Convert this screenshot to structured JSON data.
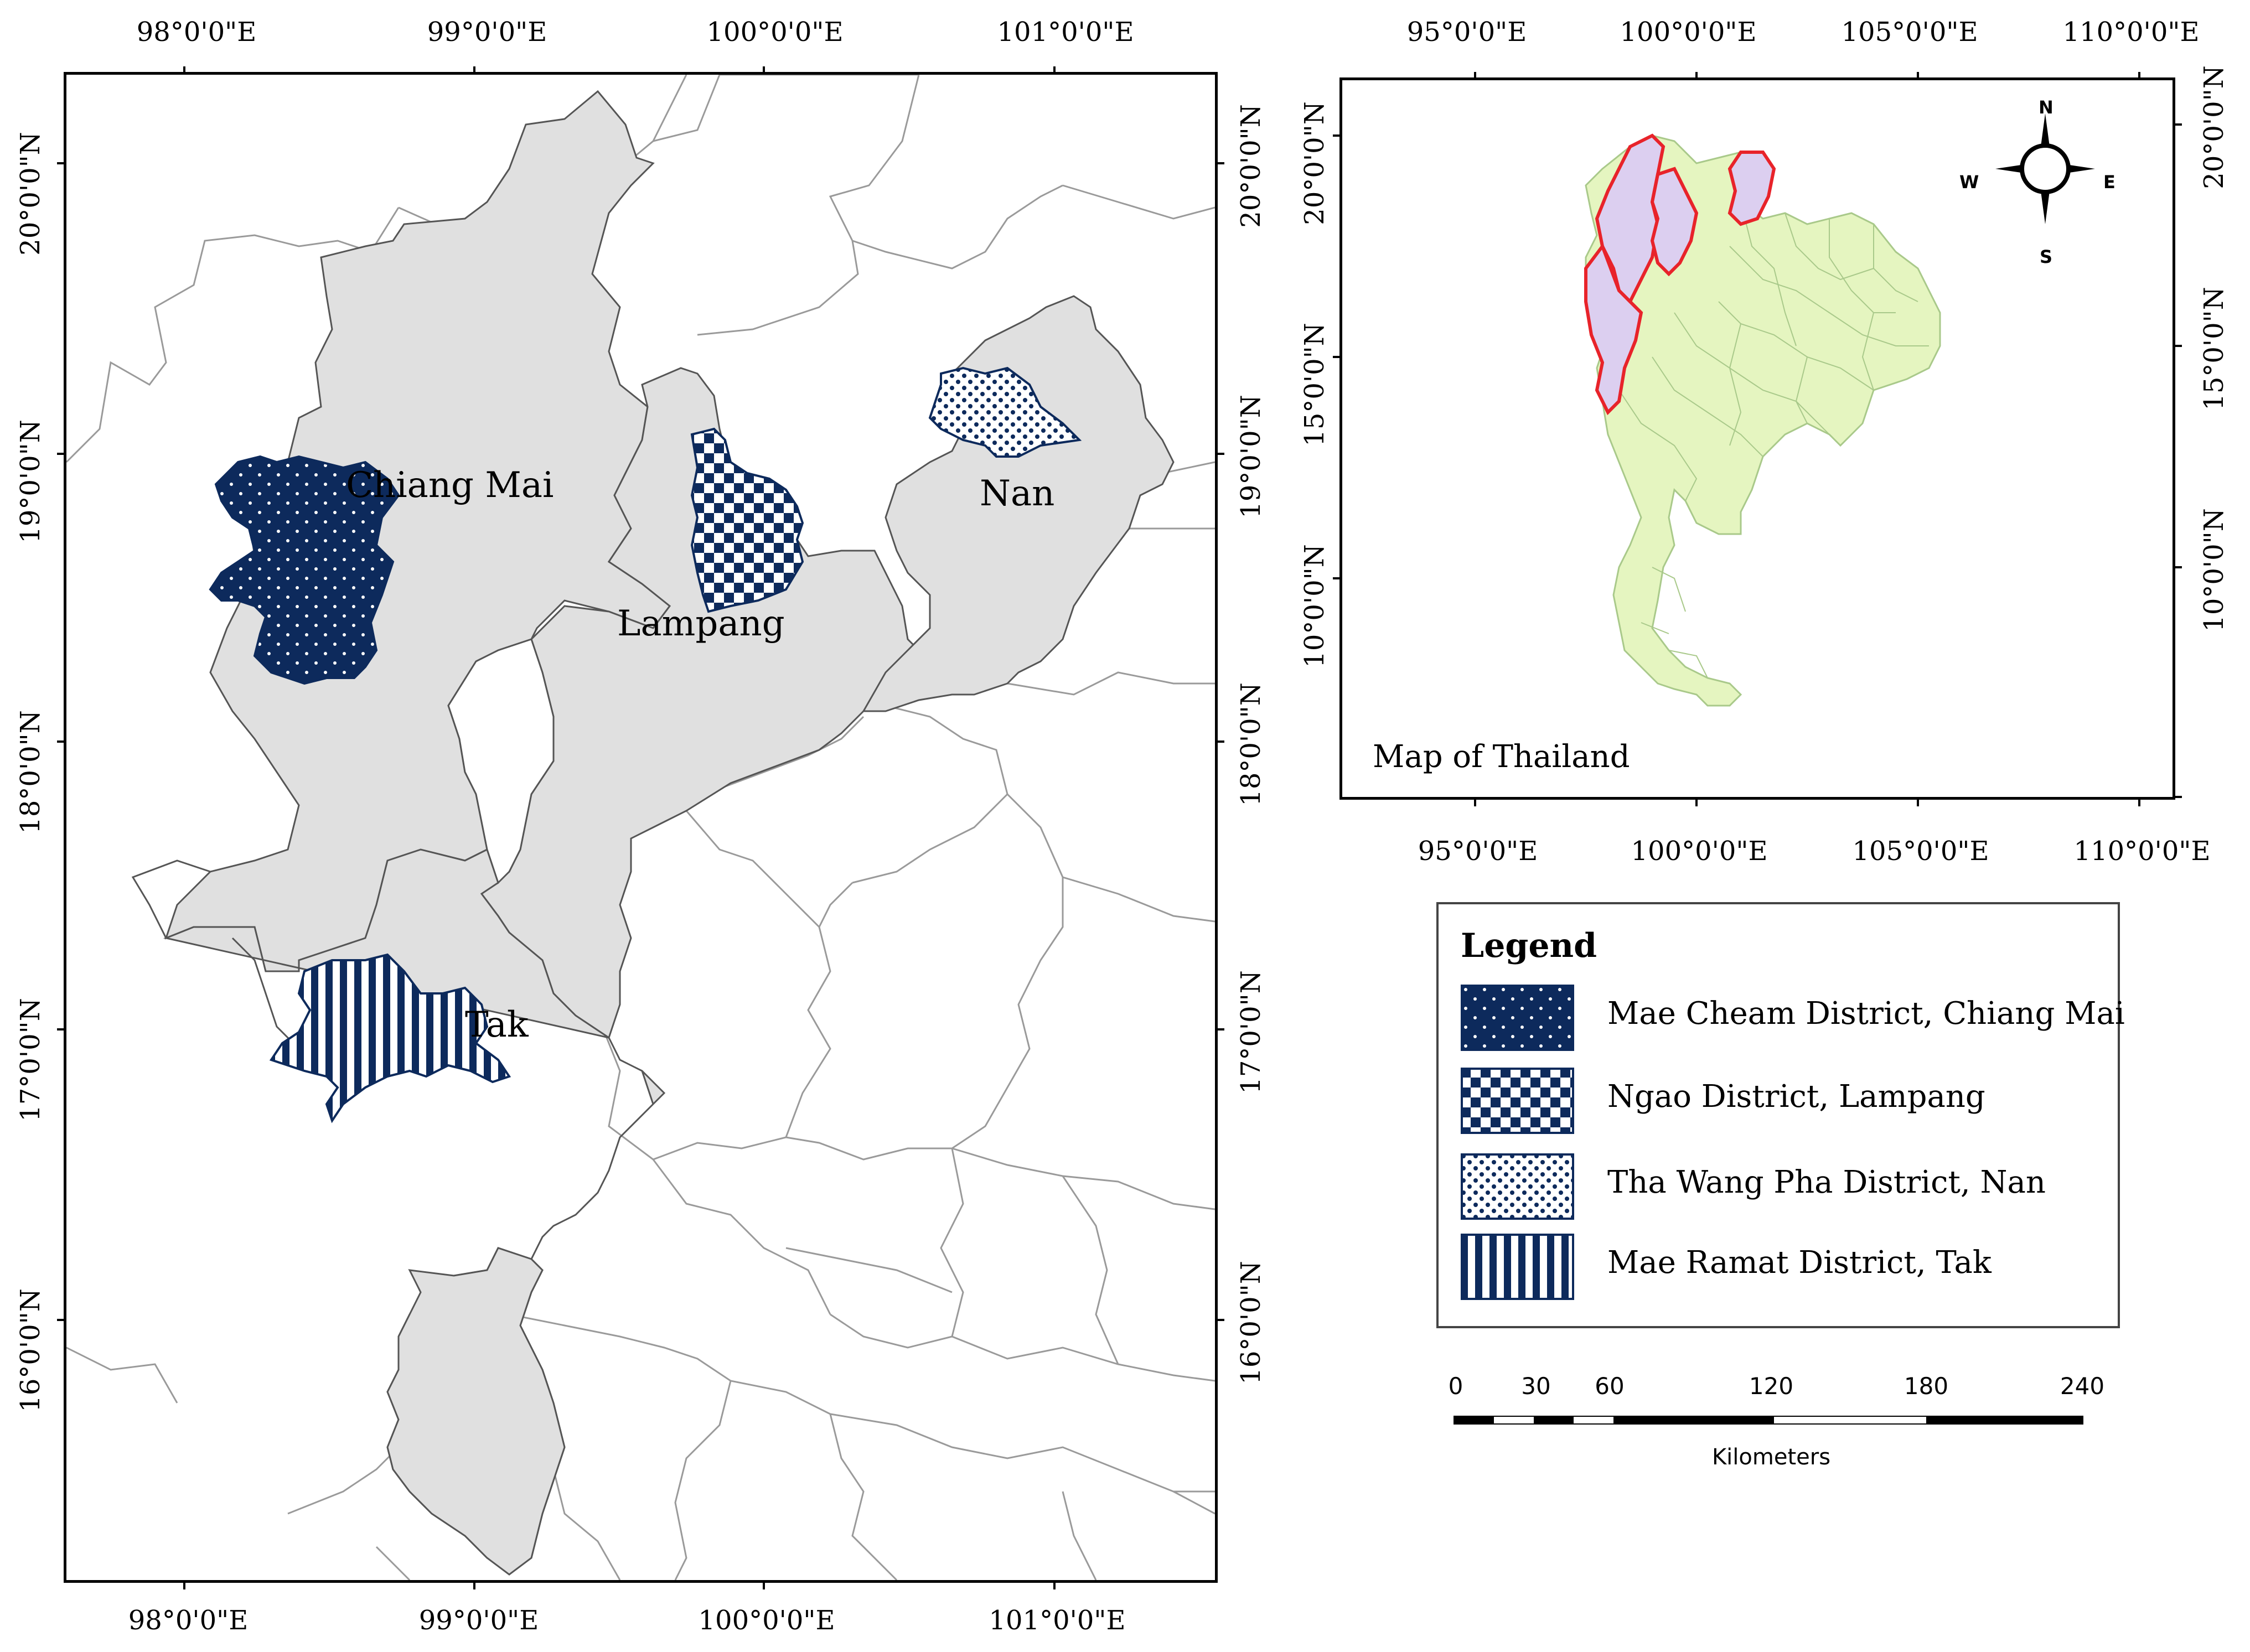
{
  "main_map": {
    "x_ticks": [
      "98°0'0\"E",
      "99°0'0\"E",
      "100°0'0\"E",
      "101°0'0\"E"
    ],
    "y_ticks": [
      "20°0'0\"N",
      "19°0'0\"N",
      "18°0'0\"N",
      "17°0'0\"N",
      "16°0'0\"N"
    ],
    "provinces": {
      "chiang_mai": "Chiang Mai",
      "lampang": "Lampang",
      "nan": "Nan",
      "tak": "Tak"
    },
    "colors": {
      "province_fill": "#e0e0e0",
      "district_fill": "#0d2a5c",
      "boundary": "#8c8c8c"
    }
  },
  "inset_map": {
    "title": "Map of Thailand",
    "x_ticks": [
      "95°0'0\"E",
      "100°0'0\"E",
      "105°0'0\"E",
      "110°0'0\"E"
    ],
    "y_ticks": [
      "20°0'0\"N",
      "15°0'0\"N",
      "10°0'0\"N"
    ],
    "compass": {
      "n": "N",
      "s": "S",
      "e": "E",
      "w": "W"
    },
    "colors": {
      "country_fill": "#e5f5c0",
      "highlight_fill": "#dccff0",
      "highlight_stroke": "#e8232a"
    }
  },
  "legend": {
    "title": "Legend",
    "items": [
      {
        "label": "Mae Cheam District, Chiang Mai",
        "pattern": "dots-dark"
      },
      {
        "label": "Ngao District, Lampang",
        "pattern": "checkerboard"
      },
      {
        "label": "Tha Wang Pha District, Nan",
        "pattern": "dots-light"
      },
      {
        "label": "Mae Ramat District, Tak",
        "pattern": "vertical-stripes"
      }
    ]
  },
  "scale_bar": {
    "ticks": [
      "0",
      "30",
      "60",
      "120",
      "180",
      "240"
    ],
    "unit": "Kilometers"
  }
}
